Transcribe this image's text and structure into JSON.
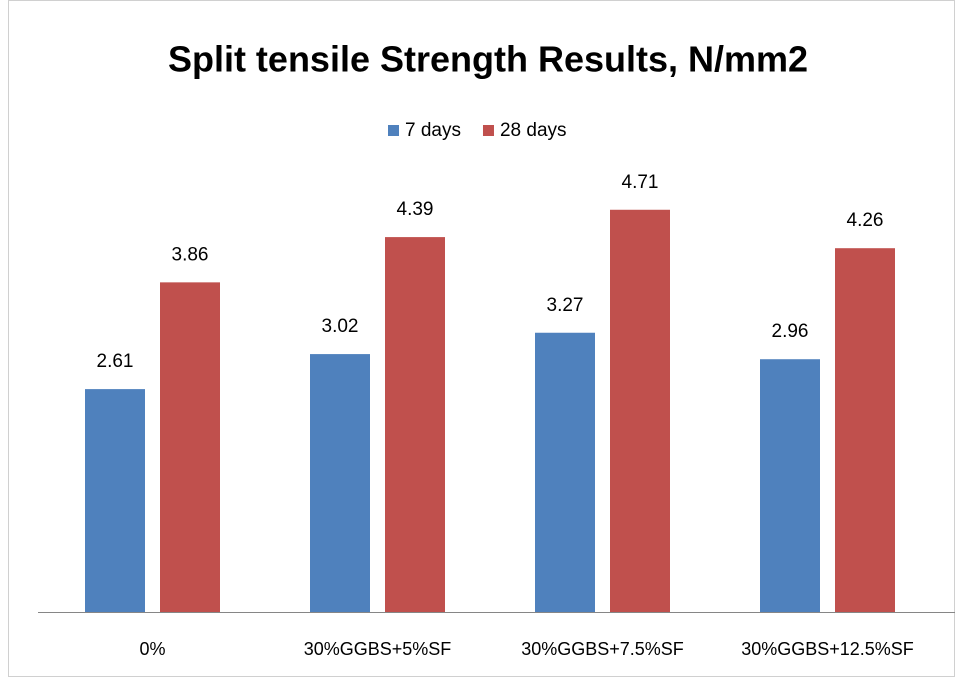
{
  "chart_data": {
    "type": "bar",
    "title": "Split tensile Strength Results, N/mm2",
    "categories": [
      "0%",
      "30%GGBS+5%SF",
      "30%GGBS+7.5%SF",
      "30%GGBS+12.5%SF"
    ],
    "series": [
      {
        "name": "7 days",
        "color": "#4f81bd",
        "values": [
          2.61,
          3.02,
          3.27,
          2.96
        ]
      },
      {
        "name": "28 days",
        "color": "#c0504d",
        "values": [
          3.86,
          4.39,
          4.71,
          4.26
        ]
      }
    ],
    "ylim": [
      0,
      5
    ],
    "legend": "top"
  }
}
